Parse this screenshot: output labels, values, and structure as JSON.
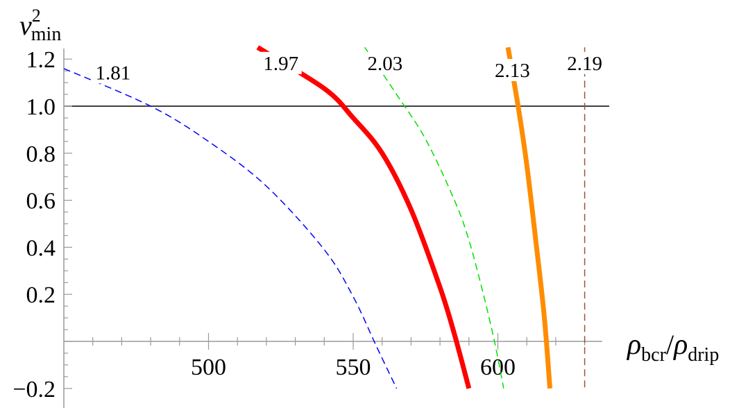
{
  "chart_data": {
    "type": "line",
    "title": "",
    "xlabel": {
      "base": "ρ",
      "sub1": "bcr",
      "sep": "/",
      "base2": "ρ",
      "sub2": "drip"
    },
    "ylabel": {
      "base": "v",
      "sup": "2",
      "sub": "min"
    },
    "xlim": [
      450,
      633
    ],
    "ylim": [
      -0.2,
      1.25
    ],
    "x_ticks": [
      500,
      550,
      600
    ],
    "x_tick_labels": [
      "500",
      "550",
      "600"
    ],
    "y_ticks": [
      -0.2,
      0.2,
      0.4,
      0.6,
      0.8,
      1.0,
      1.2
    ],
    "y_tick_labels": [
      "−0.2",
      "0.2",
      "0.4",
      "0.6",
      "0.8",
      "1.0",
      "1.2"
    ],
    "reference_line": {
      "y": 1.0,
      "color": "#000000"
    },
    "series": [
      {
        "name": "1.81",
        "color": "#0000ff",
        "style": "dashed",
        "width": 1.5,
        "x": [
          450,
          480,
          500,
          520,
          540,
          550,
          558,
          565
        ],
        "y": [
          1.16,
          1.0,
          0.85,
          0.66,
          0.39,
          0.19,
          -0.02,
          -0.2
        ]
      },
      {
        "name": "1.97",
        "color": "#ff0000",
        "style": "solid",
        "width": 7,
        "x": [
          517,
          540,
          550,
          560,
          570,
          580,
          585,
          590
        ],
        "y": [
          1.25,
          1.075,
          0.95,
          0.8,
          0.56,
          0.23,
          0.03,
          -0.2
        ]
      },
      {
        "name": "2.03",
        "color": "#00e000",
        "style": "dashed",
        "width": 1.5,
        "x": [
          554,
          565,
          575,
          585,
          590,
          595,
          599,
          602
        ],
        "y": [
          1.25,
          1.05,
          0.86,
          0.6,
          0.43,
          0.2,
          -0.01,
          -0.2
        ]
      },
      {
        "name": "2.13",
        "color": "#ff8c00",
        "style": "solid",
        "width": 7,
        "x": [
          603.5,
          607,
          610,
          613,
          616,
          618
        ],
        "y": [
          1.25,
          1.0,
          0.75,
          0.44,
          0.11,
          -0.2
        ]
      },
      {
        "name": "2.19",
        "color": "#a0522d",
        "style": "dashed",
        "width": 1.5,
        "x": [
          630,
          630
        ],
        "y": [
          1.25,
          -0.2
        ]
      }
    ],
    "labels": [
      {
        "series": "1.81",
        "x": 467,
        "y": 1.12
      },
      {
        "series": "1.97",
        "x": 525,
        "y": 1.16
      },
      {
        "series": "2.03",
        "x": 561,
        "y": 1.16
      },
      {
        "series": "2.13",
        "x": 605,
        "y": 1.13
      },
      {
        "series": "2.19",
        "x": 630,
        "y": 1.16
      }
    ]
  }
}
